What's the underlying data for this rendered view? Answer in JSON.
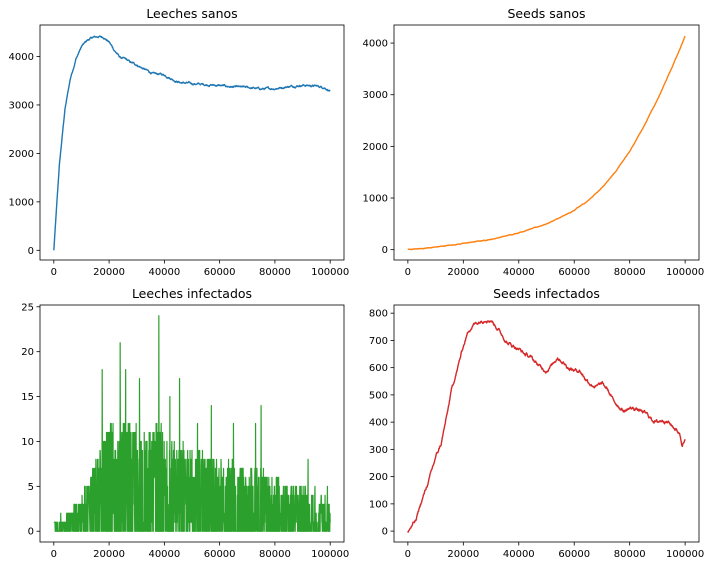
{
  "chart_data": [
    {
      "type": "line",
      "title": "Leeches sanos",
      "xlabel": "",
      "ylabel": "",
      "color": "#1f77b4",
      "xlim": [
        -5000,
        105000
      ],
      "ylim": [
        -200,
        4650
      ],
      "xticks": [
        0,
        20000,
        40000,
        60000,
        80000,
        100000
      ],
      "yticks": [
        0,
        1000,
        2000,
        3000,
        4000
      ],
      "x": [
        0,
        2000,
        4000,
        6000,
        8000,
        10000,
        12000,
        14000,
        16000,
        18000,
        20000,
        22000,
        24000,
        26000,
        28000,
        30000,
        32000,
        34000,
        36000,
        38000,
        40000,
        42000,
        44000,
        46000,
        48000,
        50000,
        55000,
        60000,
        65000,
        70000,
        75000,
        80000,
        85000,
        90000,
        95000,
        98000,
        100000
      ],
      "y": [
        0,
        1750,
        2900,
        3550,
        3950,
        4200,
        4330,
        4390,
        4410,
        4400,
        4300,
        4120,
        3980,
        3940,
        3870,
        3830,
        3760,
        3700,
        3640,
        3640,
        3620,
        3560,
        3500,
        3460,
        3450,
        3440,
        3420,
        3400,
        3370,
        3360,
        3330,
        3340,
        3380,
        3410,
        3390,
        3360,
        3290
      ],
      "noise": 25
    },
    {
      "type": "line",
      "title": "Seeds sanos",
      "xlabel": "",
      "ylabel": "",
      "color": "#ff7f0e",
      "xlim": [
        -5000,
        105000
      ],
      "ylim": [
        -200,
        4350
      ],
      "xticks": [
        0,
        20000,
        40000,
        60000,
        80000,
        100000
      ],
      "yticks": [
        0,
        1000,
        2000,
        3000,
        4000
      ],
      "x": [
        0,
        5000,
        10000,
        15000,
        20000,
        25000,
        30000,
        35000,
        40000,
        45000,
        50000,
        55000,
        60000,
        65000,
        70000,
        75000,
        80000,
        85000,
        90000,
        95000,
        100000
      ],
      "y": [
        0,
        20,
        50,
        85,
        120,
        160,
        200,
        260,
        330,
        410,
        500,
        620,
        760,
        950,
        1200,
        1520,
        1900,
        2380,
        2900,
        3500,
        4130
      ],
      "noise": 8
    },
    {
      "type": "line",
      "title": "Leeches infectados",
      "xlabel": "",
      "ylabel": "",
      "color": "#2ca02c",
      "xlim": [
        -5000,
        105000
      ],
      "ylim": [
        -1.2,
        25.2
      ],
      "xticks": [
        0,
        20000,
        40000,
        60000,
        80000,
        100000
      ],
      "yticks": [
        0,
        5,
        10,
        15,
        20,
        25
      ],
      "x": [
        0,
        2000,
        5000,
        8000,
        10000,
        12000,
        14000,
        16000,
        18000,
        20000,
        22000,
        25000,
        28000,
        30000,
        35000,
        38000,
        40000,
        45000,
        50000,
        55000,
        60000,
        65000,
        70000,
        75000,
        80000,
        85000,
        90000,
        95000,
        100000
      ],
      "y": [
        0,
        1,
        2,
        3,
        4,
        5,
        7,
        9,
        11,
        12,
        12,
        13,
        12,
        12,
        11,
        12,
        11,
        10,
        9,
        9,
        8,
        8,
        7,
        7,
        6,
        5,
        5,
        4,
        4
      ],
      "peaks": [
        [
          2500,
          2
        ],
        [
          17500,
          18
        ],
        [
          24000,
          21
        ],
        [
          26000,
          18
        ],
        [
          31000,
          17
        ],
        [
          38000,
          24
        ],
        [
          42000,
          15
        ],
        [
          45500,
          17
        ],
        [
          52000,
          12
        ],
        [
          57000,
          14
        ],
        [
          65000,
          12
        ],
        [
          73000,
          12
        ],
        [
          75000,
          14
        ],
        [
          89000,
          5
        ],
        [
          92000,
          8
        ],
        [
          94500,
          5
        ],
        [
          99000,
          5
        ]
      ],
      "noise": 0
    },
    {
      "type": "line",
      "title": "Seeds infectados",
      "xlabel": "",
      "ylabel": "",
      "color": "#d62728",
      "xlim": [
        -5000,
        105000
      ],
      "ylim": [
        -40,
        830
      ],
      "xticks": [
        0,
        20000,
        40000,
        60000,
        80000,
        100000
      ],
      "yticks": [
        0,
        100,
        200,
        300,
        400,
        500,
        600,
        700,
        800
      ],
      "x": [
        0,
        1500,
        3000,
        4000,
        6000,
        8000,
        10000,
        12000,
        14000,
        16000,
        18000,
        20000,
        22000,
        24000,
        26000,
        28000,
        30000,
        32000,
        34000,
        36000,
        38000,
        40000,
        42000,
        44000,
        46000,
        48000,
        50000,
        52000,
        54000,
        56000,
        58000,
        60000,
        62000,
        64000,
        66000,
        68000,
        70000,
        72000,
        74000,
        76000,
        78000,
        80000,
        82000,
        84000,
        86000,
        88000,
        90000,
        92000,
        94000,
        96000,
        98000,
        99000,
        100000
      ],
      "y": [
        0,
        20,
        40,
        80,
        140,
        200,
        270,
        320,
        420,
        530,
        600,
        680,
        740,
        760,
        770,
        780,
        775,
        750,
        720,
        690,
        680,
        670,
        650,
        640,
        620,
        600,
        590,
        610,
        640,
        620,
        600,
        590,
        590,
        560,
        540,
        530,
        540,
        520,
        480,
        460,
        440,
        450,
        450,
        440,
        430,
        410,
        400,
        410,
        400,
        380,
        360,
        320,
        330
      ],
      "noise": 8
    }
  ]
}
